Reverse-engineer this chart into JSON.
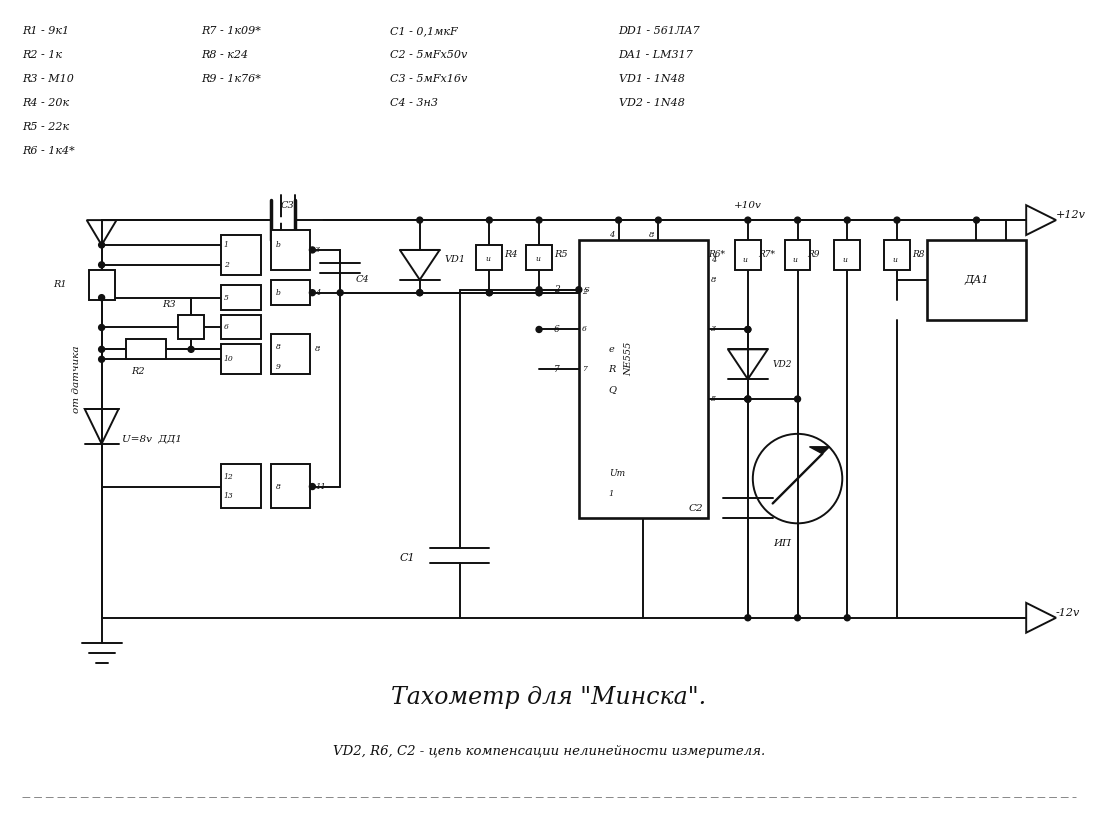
{
  "title": "Тахометр для \"Минска\".",
  "subtitle": "VD2, R6, C2 - цепь компенсации нелинейности измерителя.",
  "parts_list": {
    "col1": [
      "R1 - 9к1",
      "R2 - 1к",
      "R3 - М10",
      "R4 - 20к",
      "R5 - 22к",
      "R6 - 1к4*"
    ],
    "col2": [
      "R7 - 1к09*",
      "R8 - к24",
      "R9 - 1к76*"
    ],
    "col3": [
      "C1 - 0,1мкF",
      "C2 - 5мFх50v",
      "C3 - 5мFх16v",
      "C4 - 3н3"
    ],
    "col4": [
      "DD1 - 561ЛА7",
      "DA1 - LM317",
      "VD1 - 1N48",
      "VD2 - 1N48"
    ]
  },
  "bg_color": "#ffffff",
  "line_color": "#111111",
  "text_color": "#111111"
}
